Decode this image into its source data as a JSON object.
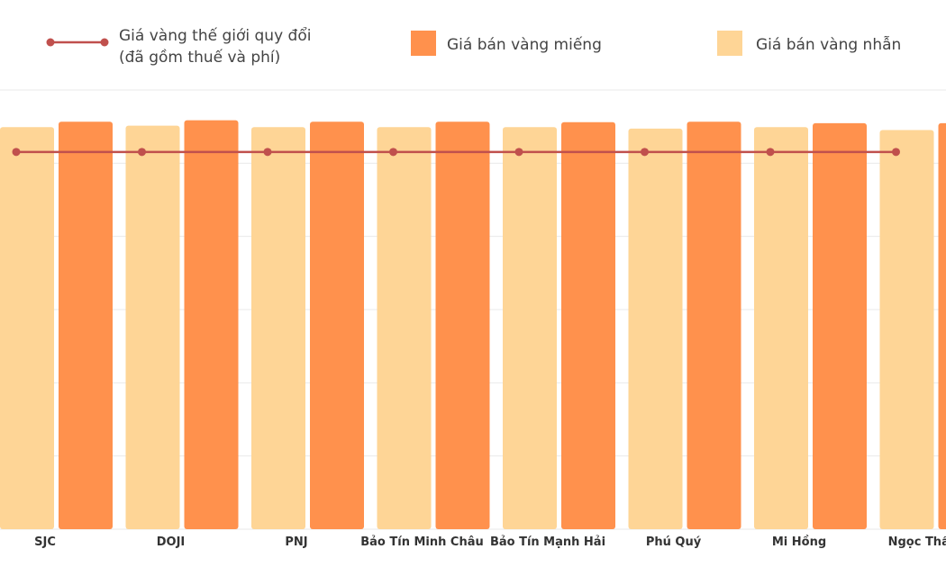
{
  "chart_data": {
    "type": "bar",
    "title": "",
    "xlabel": "",
    "ylabel": "",
    "categories": [
      "SJC",
      "DOJI",
      "PNJ",
      "Bảo Tín Minh Châu",
      "Bảo Tín Mạnh Hải",
      "Phú Quý",
      "Mi Hồng",
      "Ngọc Thẩm"
    ],
    "series": [
      {
        "name": "Giá bán vàng nhẫn",
        "kind": "bar",
        "color": "#FED596",
        "values": [
          82.4,
          82.7,
          82.4,
          82.4,
          82.4,
          82.1,
          82.4,
          81.8
        ]
      },
      {
        "name": "Giá bán vàng miếng",
        "kind": "bar",
        "color": "#FF914D",
        "values": [
          83.5,
          83.8,
          83.5,
          83.5,
          83.4,
          83.5,
          83.2,
          83.2
        ]
      },
      {
        "name": "Giá vàng thế giới quy đổi (đã gồm thuế và phí)",
        "kind": "line",
        "color": "#C0504D",
        "values": [
          77.3,
          77.3,
          77.3,
          77.3,
          77.3,
          77.3,
          77.3,
          77.3
        ]
      }
    ],
    "ylim": [
      0,
      90
    ],
    "grid": true,
    "legend": {
      "position": "top",
      "entries": [
        {
          "label_lines": [
            "Giá vàng thế giới quy đổi",
            "(đã gồm thuế và phí)"
          ],
          "symbol": "line",
          "color": "#C0504D"
        },
        {
          "label_lines": [
            "Giá bán vàng miếng"
          ],
          "symbol": "box",
          "color": "#FF914D"
        },
        {
          "label_lines": [
            "Giá bán vàng nhẫn"
          ],
          "symbol": "box",
          "color": "#FED596"
        }
      ]
    }
  }
}
